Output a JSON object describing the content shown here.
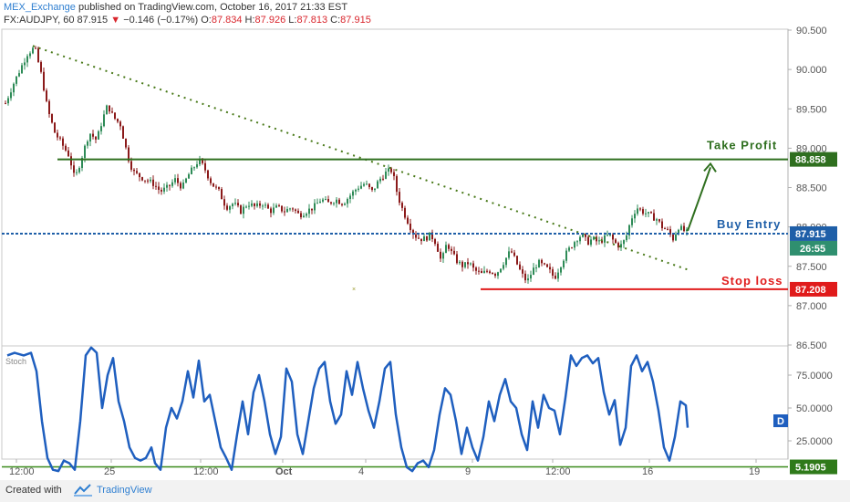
{
  "header": {
    "publisher": "MEX_Exchange",
    "published_text": "published on TradingView.com, October 16, 2017 21:33 EST",
    "symbol": "FX:AUDJPY, 60",
    "last": "87.915",
    "change": "−0.146 (−0.17%)",
    "o_label": "O:",
    "o_val": "87.834",
    "h_label": "H:",
    "h_val": "87.926",
    "l_label": "L:",
    "l_val": "87.813",
    "c_label": "C:",
    "c_val": "87.915"
  },
  "footer": {
    "created_with": "Created with",
    "brand": "TradingView"
  },
  "colors": {
    "up": "#2e8b57",
    "down": "#8b1a1a",
    "stoch": "#1f5fbf",
    "take_profit": "#2f6f1f",
    "buy": "#1f5fa8",
    "stop": "#e01b1b",
    "trend": "#4a7a1a"
  },
  "chart_data": [
    {
      "type": "candlestick",
      "ylim": [
        86.5,
        90.5
      ],
      "yticks": [
        "90.500",
        "90.000",
        "89.500",
        "89.000",
        "88.500",
        "88.000",
        "87.500",
        "87.000",
        "86.500"
      ],
      "xticks": [
        "12:00",
        "25",
        "12:00",
        "Oct",
        "4",
        "9",
        "12:00",
        "16",
        "19"
      ],
      "close_path": [
        [
          0,
          89.4
        ],
        [
          14,
          89.8
        ],
        [
          22,
          90.0
        ],
        [
          30,
          90.2
        ],
        [
          38,
          90.28
        ],
        [
          46,
          89.9
        ],
        [
          52,
          89.5
        ],
        [
          60,
          89.2
        ],
        [
          68,
          89.05
        ],
        [
          76,
          88.9
        ],
        [
          82,
          88.6
        ],
        [
          90,
          88.9
        ],
        [
          98,
          89.2
        ],
        [
          106,
          89.1
        ],
        [
          112,
          89.35
        ],
        [
          118,
          89.55
        ],
        [
          124,
          89.4
        ],
        [
          132,
          89.3
        ],
        [
          140,
          88.9
        ],
        [
          146,
          88.7
        ],
        [
          152,
          88.65
        ],
        [
          160,
          88.6
        ],
        [
          168,
          88.55
        ],
        [
          176,
          88.45
        ],
        [
          184,
          88.5
        ],
        [
          192,
          88.6
        ],
        [
          200,
          88.5
        ],
        [
          206,
          88.65
        ],
        [
          212,
          88.75
        ],
        [
          218,
          88.85
        ],
        [
          224,
          88.75
        ],
        [
          232,
          88.55
        ],
        [
          240,
          88.45
        ],
        [
          248,
          88.25
        ],
        [
          256,
          88.3
        ],
        [
          264,
          88.2
        ],
        [
          272,
          88.3
        ],
        [
          280,
          88.25
        ],
        [
          288,
          88.3
        ],
        [
          296,
          88.2
        ],
        [
          304,
          88.25
        ],
        [
          312,
          88.2
        ],
        [
          320,
          88.25
        ],
        [
          328,
          88.15
        ],
        [
          336,
          88.2
        ],
        [
          344,
          88.25
        ],
        [
          352,
          88.35
        ],
        [
          360,
          88.3
        ],
        [
          368,
          88.35
        ],
        [
          376,
          88.3
        ],
        [
          384,
          88.4
        ],
        [
          392,
          88.5
        ],
        [
          400,
          88.55
        ],
        [
          408,
          88.45
        ],
        [
          416,
          88.6
        ],
        [
          424,
          88.7
        ],
        [
          430,
          88.72
        ],
        [
          436,
          88.4
        ],
        [
          442,
          88.2
        ],
        [
          448,
          88.05
        ],
        [
          454,
          87.9
        ],
        [
          460,
          87.85
        ],
        [
          466,
          87.85
        ],
        [
          472,
          87.9
        ],
        [
          478,
          87.8
        ],
        [
          484,
          87.55
        ],
        [
          490,
          87.8
        ],
        [
          496,
          87.65
        ],
        [
          502,
          87.55
        ],
        [
          508,
          87.5
        ],
        [
          514,
          87.55
        ],
        [
          520,
          87.45
        ],
        [
          528,
          87.4
        ],
        [
          536,
          87.45
        ],
        [
          544,
          87.4
        ],
        [
          552,
          87.55
        ],
        [
          560,
          87.7
        ],
        [
          566,
          87.55
        ],
        [
          572,
          87.4
        ],
        [
          578,
          87.3
        ],
        [
          584,
          87.45
        ],
        [
          590,
          87.55
        ],
        [
          596,
          87.5
        ],
        [
          602,
          87.45
        ],
        [
          608,
          87.35
        ],
        [
          614,
          87.5
        ],
        [
          620,
          87.65
        ],
        [
          626,
          87.75
        ],
        [
          632,
          87.85
        ],
        [
          638,
          87.9
        ],
        [
          644,
          87.8
        ],
        [
          650,
          87.85
        ],
        [
          656,
          87.8
        ],
        [
          662,
          87.85
        ],
        [
          668,
          87.9
        ],
        [
          674,
          87.8
        ],
        [
          680,
          87.75
        ],
        [
          686,
          87.85
        ],
        [
          692,
          88.1
        ],
        [
          698,
          88.25
        ],
        [
          704,
          88.2
        ],
        [
          712,
          88.15
        ],
        [
          720,
          88.1
        ],
        [
          726,
          88.0
        ],
        [
          732,
          87.95
        ],
        [
          738,
          87.85
        ],
        [
          744,
          88.0
        ],
        [
          750,
          87.95
        ],
        [
          754,
          87.92
        ]
      ],
      "levels": [
        {
          "label": "Take Profit",
          "price": 88.858,
          "price_label": "88.858"
        },
        {
          "label": "Buy Entry",
          "price": 87.915,
          "price_label": "87.915",
          "timer": "26:55"
        },
        {
          "label": "Stop loss",
          "price": 87.208,
          "price_label": "87.208"
        }
      ],
      "trendline": [
        [
          36,
          90.3
        ],
        [
          756,
          87.45
        ]
      ],
      "arrow": [
        [
          754,
          87.95
        ],
        [
          779,
          88.78
        ]
      ]
    },
    {
      "type": "line",
      "series": [
        {
          "name": "Stoch",
          "values": [
            [
              8,
              90
            ],
            [
              16,
              92
            ],
            [
              26,
              90
            ],
            [
              34,
              92
            ],
            [
              40,
              78
            ],
            [
              46,
              40
            ],
            [
              52,
              12
            ],
            [
              58,
              3
            ],
            [
              64,
              2
            ],
            [
              70,
              10
            ],
            [
              76,
              8
            ],
            [
              82,
              3
            ],
            [
              88,
              40
            ],
            [
              94,
              90
            ],
            [
              100,
              96
            ],
            [
              106,
              92
            ],
            [
              112,
              50
            ],
            [
              118,
              75
            ],
            [
              124,
              88
            ],
            [
              130,
              55
            ],
            [
              136,
              40
            ],
            [
              142,
              20
            ],
            [
              148,
              12
            ],
            [
              154,
              10
            ],
            [
              160,
              12
            ],
            [
              166,
              20
            ],
            [
              170,
              8
            ],
            [
              176,
              3
            ],
            [
              182,
              35
            ],
            [
              188,
              50
            ],
            [
              194,
              42
            ],
            [
              200,
              55
            ],
            [
              206,
              78
            ],
            [
              212,
              58
            ],
            [
              218,
              86
            ],
            [
              224,
              55
            ],
            [
              230,
              60
            ],
            [
              236,
              40
            ],
            [
              242,
              20
            ],
            [
              248,
              12
            ],
            [
              254,
              3
            ],
            [
              260,
              30
            ],
            [
              266,
              55
            ],
            [
              272,
              30
            ],
            [
              278,
              62
            ],
            [
              284,
              75
            ],
            [
              290,
              55
            ],
            [
              296,
              30
            ],
            [
              302,
              15
            ],
            [
              308,
              28
            ],
            [
              314,
              80
            ],
            [
              320,
              70
            ],
            [
              326,
              30
            ],
            [
              332,
              15
            ],
            [
              338,
              40
            ],
            [
              344,
              65
            ],
            [
              350,
              80
            ],
            [
              356,
              85
            ],
            [
              362,
              55
            ],
            [
              368,
              38
            ],
            [
              374,
              45
            ],
            [
              380,
              78
            ],
            [
              386,
              60
            ],
            [
              392,
              85
            ],
            [
              398,
              65
            ],
            [
              404,
              48
            ],
            [
              410,
              35
            ],
            [
              416,
              55
            ],
            [
              422,
              80
            ],
            [
              428,
              85
            ],
            [
              434,
              45
            ],
            [
              440,
              20
            ],
            [
              446,
              5
            ],
            [
              452,
              2
            ],
            [
              458,
              8
            ],
            [
              464,
              10
            ],
            [
              470,
              5
            ],
            [
              476,
              18
            ],
            [
              482,
              45
            ],
            [
              488,
              65
            ],
            [
              494,
              60
            ],
            [
              500,
              40
            ],
            [
              506,
              15
            ],
            [
              512,
              35
            ],
            [
              518,
              20
            ],
            [
              524,
              10
            ],
            [
              530,
              28
            ],
            [
              536,
              55
            ],
            [
              542,
              40
            ],
            [
              548,
              60
            ],
            [
              554,
              72
            ],
            [
              560,
              55
            ],
            [
              566,
              50
            ],
            [
              572,
              30
            ],
            [
              578,
              18
            ],
            [
              584,
              55
            ],
            [
              590,
              35
            ],
            [
              596,
              60
            ],
            [
              602,
              50
            ],
            [
              608,
              48
            ],
            [
              614,
              30
            ],
            [
              620,
              58
            ],
            [
              626,
              90
            ],
            [
              632,
              82
            ],
            [
              638,
              88
            ],
            [
              644,
              90
            ],
            [
              650,
              84
            ],
            [
              656,
              88
            ],
            [
              662,
              62
            ],
            [
              668,
              45
            ],
            [
              674,
              56
            ],
            [
              680,
              22
            ],
            [
              686,
              35
            ],
            [
              692,
              82
            ],
            [
              698,
              90
            ],
            [
              704,
              78
            ],
            [
              710,
              85
            ],
            [
              716,
              70
            ],
            [
              722,
              48
            ],
            [
              728,
              20
            ],
            [
              734,
              10
            ],
            [
              740,
              28
            ],
            [
              746,
              55
            ],
            [
              752,
              52
            ],
            [
              754,
              35
            ]
          ]
        }
      ],
      "ylabel": "Stoch",
      "yticks": [
        "75.0000",
        "50.0000",
        "25.0000"
      ],
      "level": 5.1905,
      "level_label": "5.1905",
      "badge": "D"
    }
  ]
}
